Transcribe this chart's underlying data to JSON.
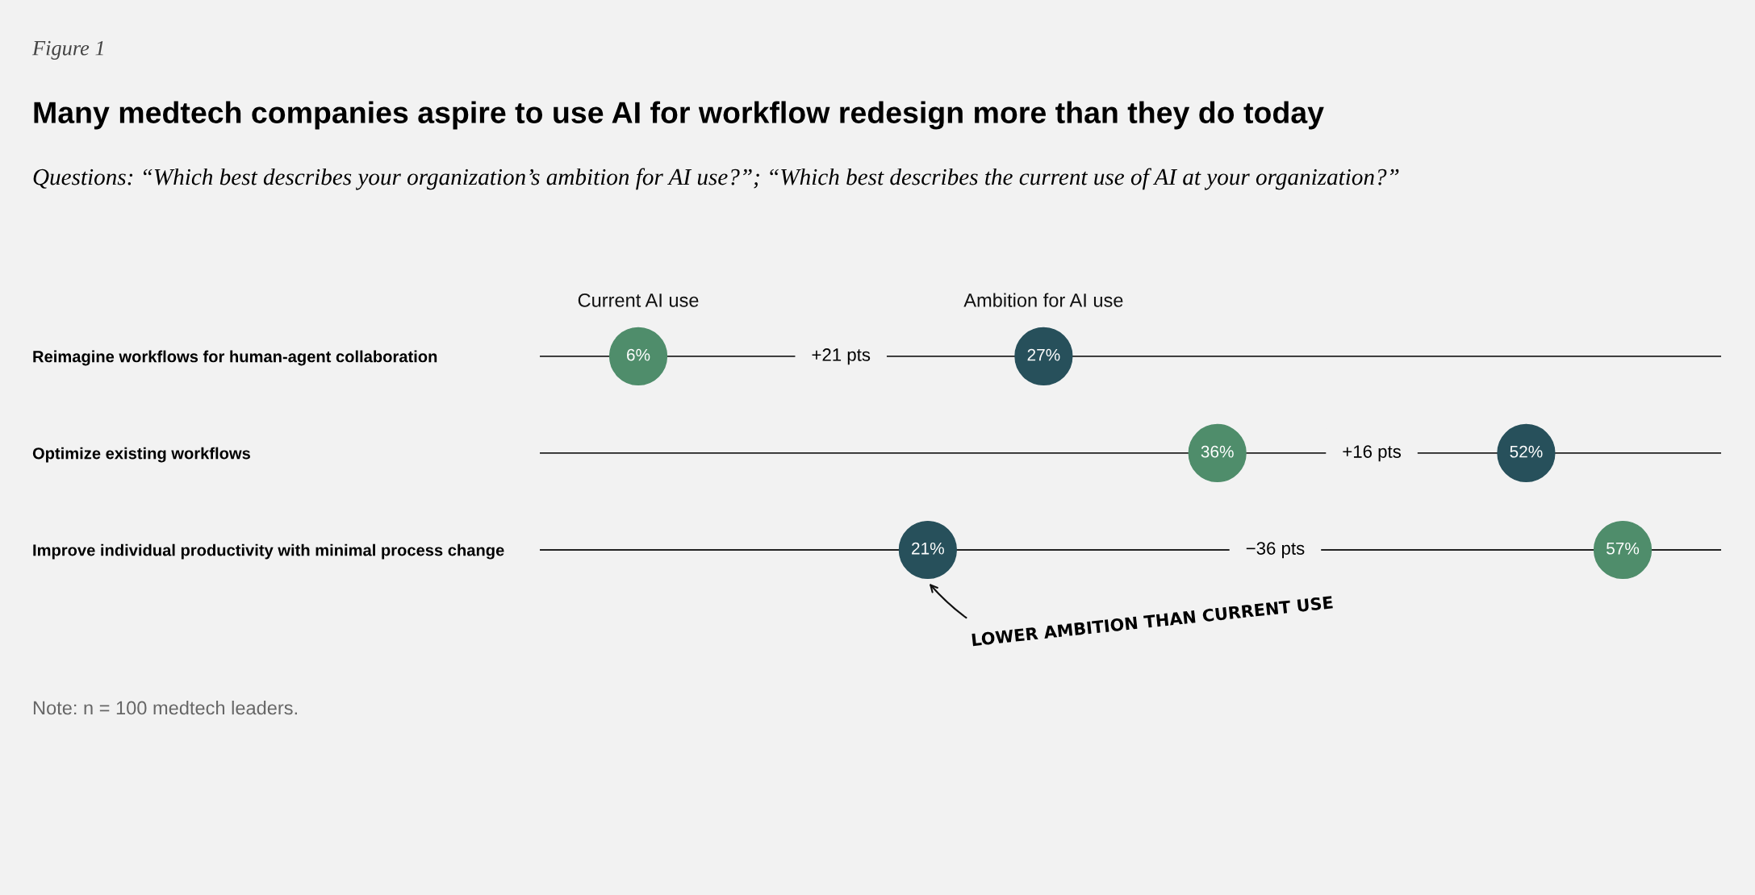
{
  "chart_data": {
    "type": "scatter",
    "orientation": "horizontal",
    "title": "Many medtech companies aspire to use AI for workflow redesign more than they do today",
    "subtitle": "Questions: “Which best describes your organization’s ambition for AI use?”; “Which best describes the current use of AI at your organization?”",
    "categories": [
      "Reimagine workflows for human-agent collaboration",
      "Optimize existing workflows",
      "Improve individual productivity with minimal process change"
    ],
    "series": [
      {
        "name": "Current AI use",
        "color": "#4f8d6b",
        "values": [
          6,
          36,
          57
        ],
        "value_labels": [
          "6%",
          "36%",
          "57%"
        ]
      },
      {
        "name": "Ambition for AI use",
        "color": "#27505b",
        "values": [
          27,
          52,
          21
        ],
        "value_labels": [
          "27%",
          "52%",
          "21%"
        ]
      }
    ],
    "grid": "y",
    "legend": false,
    "marker": "circle",
    "annotations": [
      "Figure 1",
      "+21 pts",
      "+16 pts",
      "−36 pts",
      "LOWER AMBITION THAN CURRENT USE",
      "Note: n = 100 medtech leaders."
    ]
  }
}
